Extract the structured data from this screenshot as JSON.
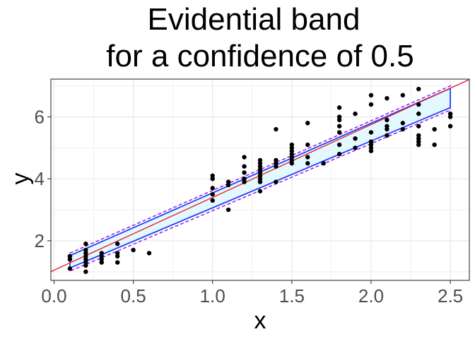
{
  "chart_data": {
    "type": "scatter",
    "title_lines": [
      "Evidential band",
      "for a confidence of 0.5"
    ],
    "xlabel": "x",
    "ylabel": "y",
    "xlim": [
      -0.02,
      2.62
    ],
    "ylim": [
      0.72,
      7.22
    ],
    "x_ticks": [
      0.0,
      0.5,
      1.0,
      1.5,
      2.0,
      2.5
    ],
    "x_tick_labels": [
      "0.0",
      "0.5",
      "1.0",
      "1.5",
      "2.0",
      "2.5"
    ],
    "y_ticks": [
      2,
      4,
      6
    ],
    "y_tick_labels": [
      "2",
      "4",
      "6"
    ],
    "grid": true,
    "legend": "none",
    "colors": {
      "points": "#000000",
      "fit_line": "#e8242b",
      "inner_band_fill": "#e0f8ff",
      "band_line": "#1f3fff",
      "outer_band": "#9a2be2",
      "grid": "#ebebeb",
      "panel_border": "#333333"
    },
    "fit_line": {
      "intercept": 1.05,
      "slope": 2.35
    },
    "inner_band": {
      "x": [
        0.1,
        2.5
      ],
      "upper": [
        1.52,
        6.92
      ],
      "lower": [
        1.12,
        6.3
      ]
    },
    "outer_band": {
      "x": [
        0.1,
        2.5
      ],
      "upper": [
        1.6,
        7.0
      ],
      "lower": [
        1.02,
        6.22
      ]
    },
    "points": [
      [
        0.1,
        1.1
      ],
      [
        0.1,
        1.4
      ],
      [
        0.1,
        1.5
      ],
      [
        0.1,
        1.5
      ],
      [
        0.2,
        1.0
      ],
      [
        0.2,
        1.2
      ],
      [
        0.2,
        1.3
      ],
      [
        0.2,
        1.4
      ],
      [
        0.2,
        1.5
      ],
      [
        0.2,
        1.6
      ],
      [
        0.2,
        1.7
      ],
      [
        0.2,
        1.9
      ],
      [
        0.3,
        1.3
      ],
      [
        0.3,
        1.4
      ],
      [
        0.3,
        1.5
      ],
      [
        0.3,
        1.6
      ],
      [
        0.4,
        1.3
      ],
      [
        0.4,
        1.5
      ],
      [
        0.4,
        1.6
      ],
      [
        0.4,
        1.9
      ],
      [
        0.5,
        1.7
      ],
      [
        0.6,
        1.6
      ],
      [
        1.0,
        3.3
      ],
      [
        1.0,
        3.5
      ],
      [
        1.0,
        3.7
      ],
      [
        1.0,
        4.0
      ],
      [
        1.0,
        4.1
      ],
      [
        1.1,
        3.0
      ],
      [
        1.1,
        3.8
      ],
      [
        1.1,
        3.9
      ],
      [
        1.2,
        3.9
      ],
      [
        1.2,
        4.0
      ],
      [
        1.2,
        4.2
      ],
      [
        1.2,
        4.4
      ],
      [
        1.2,
        4.7
      ],
      [
        1.3,
        3.6
      ],
      [
        1.3,
        3.9
      ],
      [
        1.3,
        4.0
      ],
      [
        1.3,
        4.1
      ],
      [
        1.3,
        4.2
      ],
      [
        1.3,
        4.3
      ],
      [
        1.3,
        4.4
      ],
      [
        1.3,
        4.5
      ],
      [
        1.3,
        4.6
      ],
      [
        1.4,
        3.9
      ],
      [
        1.4,
        4.4
      ],
      [
        1.4,
        4.5
      ],
      [
        1.4,
        4.6
      ],
      [
        1.4,
        5.6
      ],
      [
        1.5,
        4.5
      ],
      [
        1.5,
        4.6
      ],
      [
        1.5,
        4.7
      ],
      [
        1.5,
        4.8
      ],
      [
        1.5,
        4.9
      ],
      [
        1.5,
        5.0
      ],
      [
        1.5,
        5.1
      ],
      [
        1.6,
        4.5
      ],
      [
        1.6,
        4.7
      ],
      [
        1.6,
        5.1
      ],
      [
        1.6,
        5.8
      ],
      [
        1.7,
        4.5
      ],
      [
        1.8,
        4.8
      ],
      [
        1.8,
        5.1
      ],
      [
        1.8,
        5.5
      ],
      [
        1.8,
        5.7
      ],
      [
        1.8,
        5.9
      ],
      [
        1.8,
        6.0
      ],
      [
        1.8,
        6.3
      ],
      [
        1.9,
        5.0
      ],
      [
        1.9,
        5.3
      ],
      [
        1.9,
        6.1
      ],
      [
        2.0,
        4.9
      ],
      [
        2.0,
        5.0
      ],
      [
        2.0,
        5.1
      ],
      [
        2.0,
        5.2
      ],
      [
        2.0,
        5.5
      ],
      [
        2.0,
        6.4
      ],
      [
        2.0,
        6.7
      ],
      [
        2.1,
        5.4
      ],
      [
        2.1,
        5.6
      ],
      [
        2.1,
        5.7
      ],
      [
        2.1,
        5.9
      ],
      [
        2.1,
        6.6
      ],
      [
        2.2,
        5.6
      ],
      [
        2.2,
        5.8
      ],
      [
        2.2,
        6.7
      ],
      [
        2.3,
        5.1
      ],
      [
        2.3,
        5.2
      ],
      [
        2.3,
        5.3
      ],
      [
        2.3,
        5.4
      ],
      [
        2.3,
        5.7
      ],
      [
        2.3,
        6.1
      ],
      [
        2.3,
        6.4
      ],
      [
        2.3,
        6.9
      ],
      [
        2.4,
        5.1
      ],
      [
        2.4,
        5.6
      ],
      [
        2.5,
        5.7
      ],
      [
        2.5,
        6.0
      ],
      [
        2.5,
        6.1
      ]
    ]
  }
}
